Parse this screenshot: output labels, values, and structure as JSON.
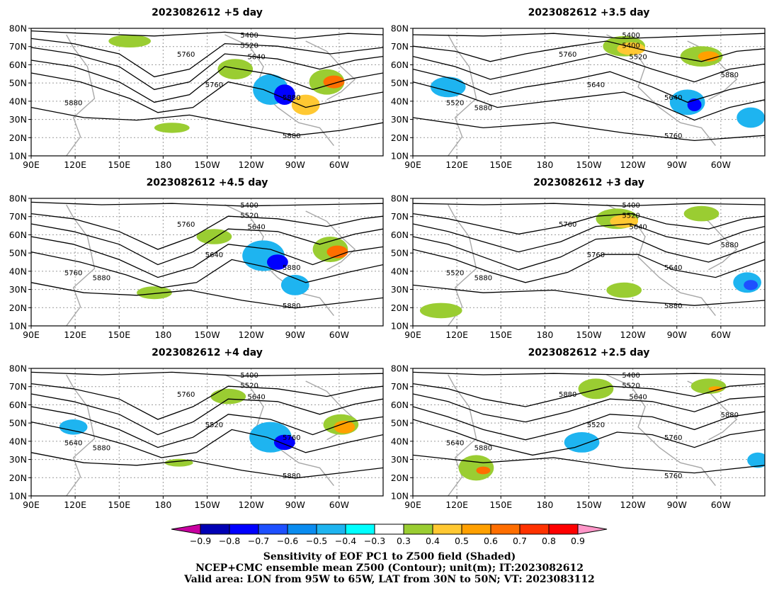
{
  "panels": [
    {
      "title": "2023082612  +5 day",
      "contour_labels": [
        "5400",
        "5520",
        "5640",
        "5760",
        "5880",
        "5880",
        "5760",
        "5880"
      ]
    },
    {
      "title": "2023082612  +3.5 day",
      "contour_labels": [
        "5400",
        "5400",
        "5520",
        "5640",
        "5520",
        "5640",
        "5760",
        "5760",
        "5880",
        "5880"
      ]
    },
    {
      "title": "2023082612  +4.5 day",
      "contour_labels": [
        "5400",
        "5520",
        "5640",
        "5640",
        "5760",
        "5880",
        "5760",
        "5880",
        "5880"
      ]
    },
    {
      "title": "2023082612  +3 day",
      "contour_labels": [
        "5400",
        "5520",
        "5640",
        "5760",
        "5520",
        "5640",
        "5760",
        "5880",
        "5880",
        "5880"
      ]
    },
    {
      "title": "2023082612  +4 day",
      "contour_labels": [
        "5400",
        "5520",
        "5640",
        "5520",
        "5640",
        "5760",
        "5760",
        "5880",
        "5880"
      ]
    },
    {
      "title": "2023082612  +2.5 day",
      "contour_labels": [
        "5400",
        "5520",
        "5640",
        "5520",
        "5640",
        "5760",
        "5880",
        "5760",
        "5880",
        "5880"
      ]
    }
  ],
  "x_ticks": [
    "90E",
    "120E",
    "150E",
    "180",
    "150W",
    "120W",
    "90W",
    "60W"
  ],
  "y_ticks": [
    "10N",
    "20N",
    "30N",
    "40N",
    "50N",
    "60N",
    "70N",
    "80N"
  ],
  "colorbar": {
    "labels": [
      "-0.9",
      "-0.8",
      "-0.7",
      "-0.6",
      "-0.5",
      "-0.4",
      "-0.3",
      "0.3",
      "0.4",
      "0.5",
      "0.6",
      "0.7",
      "0.8",
      "0.9"
    ],
    "colors": [
      "#0000b4",
      "#0000ff",
      "#1e50ff",
      "#0a8cf0",
      "#1eb4f0",
      "#00ffff",
      "#ffffff",
      "#9acd32",
      "#ffc832",
      "#ffa000",
      "#ff6e00",
      "#ff3200",
      "#ff0000"
    ],
    "low_end_color": "#c800a0",
    "high_end_color": "#ff96c8"
  },
  "caption": {
    "line1": "Sensitivity of EOF PC1 to Z500 field (Shaded)",
    "line2": "NCEP+CMC ensemble mean Z500 (Contour); unit(m); IT:2023082612",
    "line3": "Valid area: LON from 95W to 65W, LAT from 30N to 50N; VT: 2023083112"
  }
}
